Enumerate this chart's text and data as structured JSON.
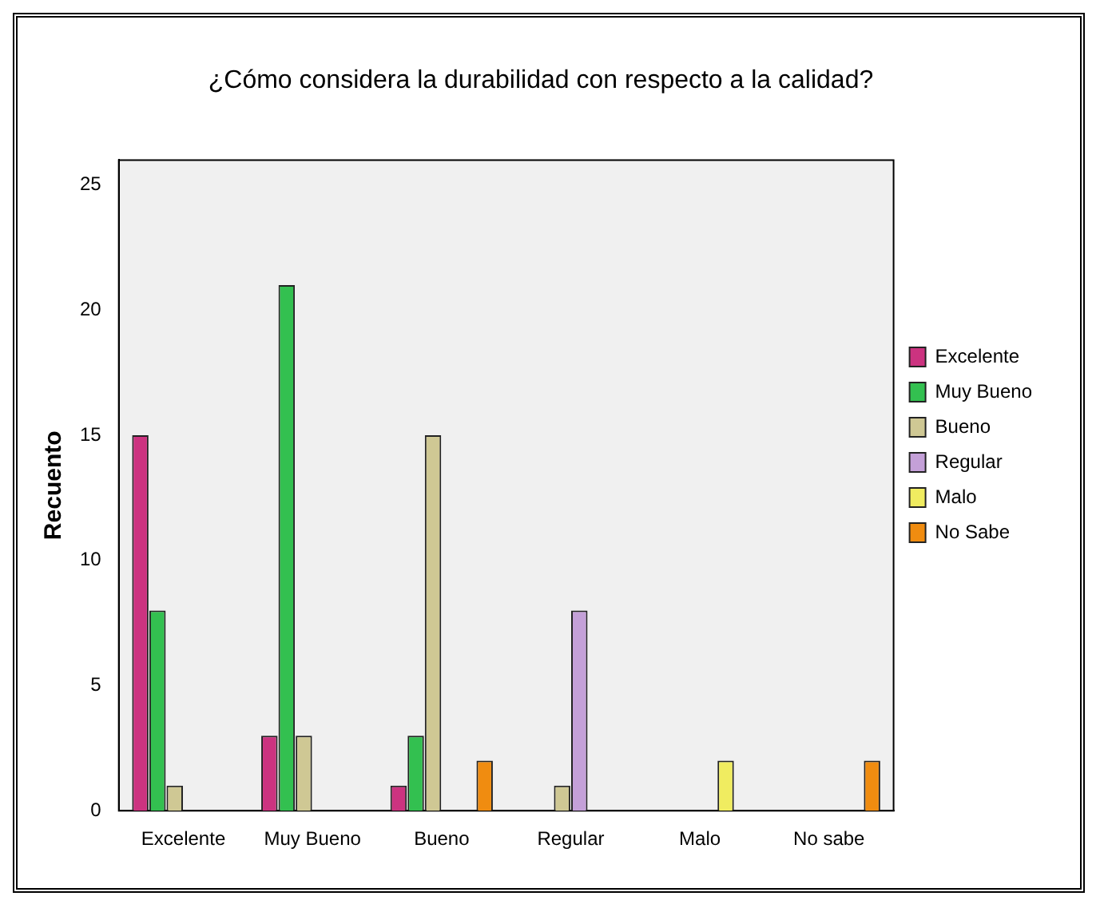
{
  "chart_data": {
    "type": "bar",
    "title": "¿Cómo considera la durabilidad con respecto a la calidad?",
    "ylabel": "Recuento",
    "categories": [
      "Excelente",
      "Muy Bueno",
      "Bueno",
      "Regular",
      "Malo",
      "No sabe"
    ],
    "series": [
      {
        "name": "Excelente",
        "color": "#cc3380",
        "values": [
          15,
          3,
          1,
          null,
          null,
          null
        ]
      },
      {
        "name": "Muy Bueno",
        "color": "#33c050",
        "values": [
          8,
          21,
          3,
          null,
          null,
          null
        ]
      },
      {
        "name": "Bueno",
        "color": "#cfc894",
        "values": [
          1,
          3,
          15,
          1,
          null,
          null
        ]
      },
      {
        "name": "Regular",
        "color": "#c4a0d8",
        "values": [
          null,
          null,
          null,
          8,
          null,
          null
        ]
      },
      {
        "name": "Malo",
        "color": "#f0ec60",
        "values": [
          null,
          null,
          null,
          null,
          2,
          null
        ]
      },
      {
        "name": "No Sabe",
        "color": "#f08c10",
        "values": [
          null,
          null,
          2,
          null,
          null,
          2
        ]
      }
    ],
    "ylim": [
      0,
      26
    ],
    "yticks": [
      0,
      5,
      10,
      15,
      20,
      25
    ],
    "legend": "right",
    "grid": false
  }
}
